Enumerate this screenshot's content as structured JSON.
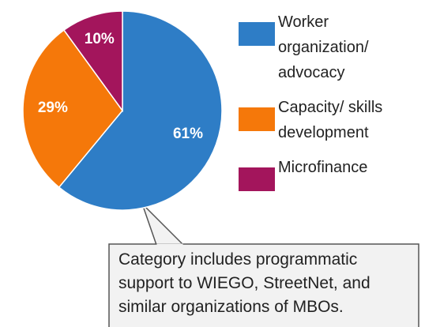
{
  "chart_data": {
    "type": "pie",
    "series": [
      {
        "name": "Worker organization/ advocacy",
        "color": "#2e7dc6",
        "values": [
          61
        ],
        "value_labels": [
          "61%"
        ]
      },
      {
        "name": "Capacity/ skills development",
        "color": "#f5780a",
        "values": [
          29
        ],
        "value_labels": [
          "29%"
        ]
      },
      {
        "name": "Microfinance",
        "color": "#a3155c",
        "values": [
          10
        ],
        "value_labels": [
          "10%"
        ]
      }
    ],
    "annotation": "Category includes programmatic support to WIEGO, StreetNet, and similar organizations of MBOs."
  }
}
